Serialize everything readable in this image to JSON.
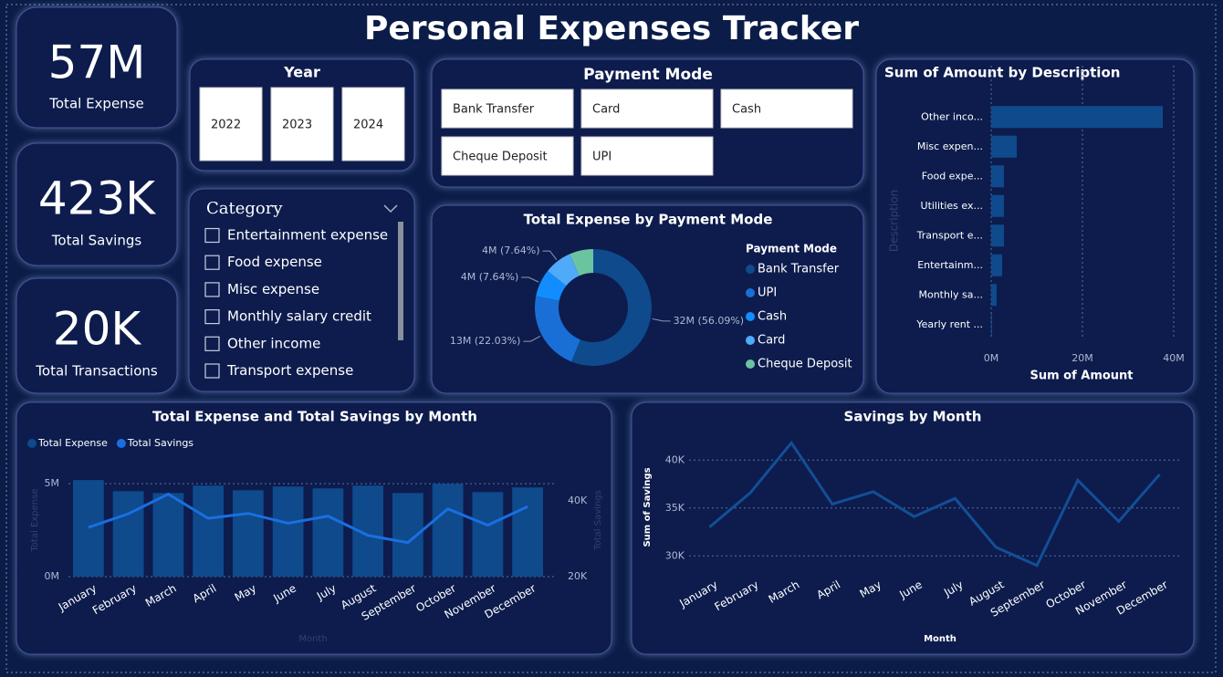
{
  "title": "Personal Expenses Tracker",
  "kpis": [
    {
      "value": "57M",
      "label": "Total Expense"
    },
    {
      "value": "423K",
      "label": "Total Savings"
    },
    {
      "value": "20K",
      "label": "Total Transactions"
    }
  ],
  "slicers": {
    "year": {
      "title": "Year",
      "items": [
        "2022",
        "2023",
        "2024"
      ]
    },
    "payment_mode": {
      "title": "Payment Mode",
      "items": [
        "Bank Transfer",
        "Card",
        "Cash",
        "Cheque Deposit",
        "UPI"
      ]
    },
    "category": {
      "title": "Category",
      "items": [
        "Entertainment expense",
        "Food expense",
        "Misc expense",
        "Monthly salary credit",
        "Other income",
        "Transport expense"
      ]
    }
  },
  "chart_data": [
    {
      "type": "donut",
      "title": "Total Expense by Payment Mode",
      "legend_title": "Payment Mode",
      "categories": [
        "Bank Transfer",
        "UPI",
        "Cash",
        "Card",
        "Cheque Deposit"
      ],
      "values": [
        56.09,
        22.03,
        7.64,
        7.64,
        6.6
      ],
      "value_labels": [
        "32M (56.09%)",
        "13M (22.03%)",
        "4M (7.64%)",
        "4M (7.64%)",
        null
      ],
      "colors": [
        "#0f4a8c",
        "#1a6fd6",
        "#118dff",
        "#4faaf7",
        "#6cc3a0"
      ]
    },
    {
      "type": "hbar",
      "title": "Sum of Amount by Description",
      "categories": [
        "Other inco...",
        "Misc expen...",
        "Food expe...",
        "Utilities ex...",
        "Transport e...",
        "Entertainm...",
        "Monthly sa...",
        "Yearly rent ..."
      ],
      "values": [
        37.6,
        5.6,
        2.8,
        2.8,
        2.8,
        2.4,
        1.2,
        0.2
      ],
      "color": "#0f4a8c",
      "xlim": [
        0,
        42
      ],
      "xticks": [
        {
          "value": 0,
          "label": "0M"
        },
        {
          "value": 20,
          "label": "20M"
        },
        {
          "value": 40,
          "label": "40M"
        }
      ],
      "xlabel": "Sum of Amount",
      "ylabel": "Description",
      "grid": true
    },
    {
      "type": "combo",
      "title": "Total Expense and Total Savings by Month",
      "categories": [
        "January",
        "February",
        "March",
        "April",
        "May",
        "June",
        "July",
        "August",
        "September",
        "October",
        "November",
        "December"
      ],
      "series": [
        {
          "name": "Total Expense",
          "type": "bar",
          "color": "#0e4a8c",
          "values": [
            5.2,
            4.6,
            4.5,
            4.9,
            4.65,
            4.85,
            4.75,
            4.9,
            4.5,
            5.0,
            4.55,
            4.8
          ]
        },
        {
          "name": "Total Savings",
          "type": "line",
          "axis": "y2",
          "color": "#1a6fe0",
          "values": [
            33.0,
            36.6,
            41.8,
            35.4,
            36.7,
            34.1,
            36.0,
            30.9,
            29.0,
            37.9,
            33.6,
            38.5
          ]
        }
      ],
      "ylim": [
        0,
        5.5
      ],
      "yticks": [
        {
          "value": 0,
          "label": "0M"
        },
        {
          "value": 5,
          "label": "5M"
        }
      ],
      "y2lim": [
        20,
        47
      ],
      "y2ticks": [
        {
          "value": 20,
          "label": "20K"
        },
        {
          "value": 40,
          "label": "40K"
        }
      ],
      "xlabel": "Month",
      "ylabel": "Total Expense",
      "y2label": "Total Savings",
      "legend": "top-left",
      "grid": true
    },
    {
      "type": "line",
      "title": "Savings by Month",
      "categories": [
        "January",
        "February",
        "March",
        "April",
        "May",
        "June",
        "July",
        "August",
        "September",
        "October",
        "November",
        "December"
      ],
      "values": [
        33.0,
        36.6,
        41.8,
        35.4,
        36.7,
        34.1,
        36.0,
        30.9,
        29.0,
        37.9,
        33.6,
        38.5
      ],
      "color": "#134f96",
      "ylim": [
        28.5,
        42.5
      ],
      "yticks": [
        {
          "value": 30,
          "label": "30K"
        },
        {
          "value": 35,
          "label": "35K"
        },
        {
          "value": 40,
          "label": "40K"
        }
      ],
      "xlabel": "Month",
      "ylabel": "Sum of Savings",
      "grid": true
    }
  ]
}
